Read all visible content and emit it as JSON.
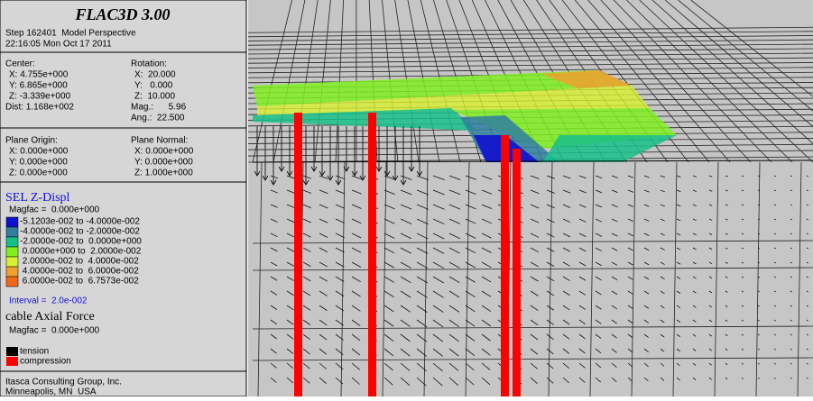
{
  "header": {
    "title": "FLAC3D 3.00",
    "step": "Step 162401  Model Perspective",
    "time": "22:16:05 Mon Oct 17 2011"
  },
  "view": {
    "center_label": "Center:",
    "center": [
      "X: 4.755e+000",
      "Y: 6.865e+000",
      "Z: -3.339e+000"
    ],
    "dist": "Dist: 1.168e+002",
    "rotation_label": "Rotation:",
    "rotation": [
      "X:  20.000",
      "Y:   0.000",
      "Z:  10.000"
    ],
    "mag": "Mag.:      5.96",
    "ang": "Ang.:  22.500"
  },
  "plane": {
    "origin_label": "Plane Origin:",
    "origin": [
      "X: 0.000e+000",
      "Y: 0.000e+000",
      "Z: 0.000e+000"
    ],
    "normal_label": "Plane Normal:",
    "normal": [
      "X: 0.000e+000",
      "Y: 0.000e+000",
      "Z: 1.000e+000"
    ]
  },
  "zdispl": {
    "title": "SEL Z-Displ",
    "magfac": "Magfac =  0.000e+000",
    "items": [
      {
        "label": "-5.1203e-002 to -4.0000e-002",
        "color": "#1010d0"
      },
      {
        "label": "-4.0000e-002 to -2.0000e-002",
        "color": "#2f7f9f"
      },
      {
        "label": "-2.0000e-002 to  0.0000e+000",
        "color": "#16c08a"
      },
      {
        "label": " 0.0000e+000 to  2.0000e-002",
        "color": "#80f020"
      },
      {
        "label": " 2.0000e-002 to  4.0000e-002",
        "color": "#d8f030"
      },
      {
        "label": " 4.0000e-002 to  6.0000e-002",
        "color": "#f0a030"
      },
      {
        "label": " 6.0000e-002 to  6.7573e-002",
        "color": "#f06818"
      }
    ],
    "interval": "Interval =  2.0e-002"
  },
  "cable": {
    "title": "cable Axial Force",
    "magfac": "Magfac =  0.000e+000",
    "items": [
      {
        "label": "tension",
        "color": "#000000"
      },
      {
        "label": "compression",
        "color": "#ff0000"
      }
    ]
  },
  "footer": [
    "Itasca Consulting Group, Inc.",
    "Minneapolis, MN  USA"
  ]
}
